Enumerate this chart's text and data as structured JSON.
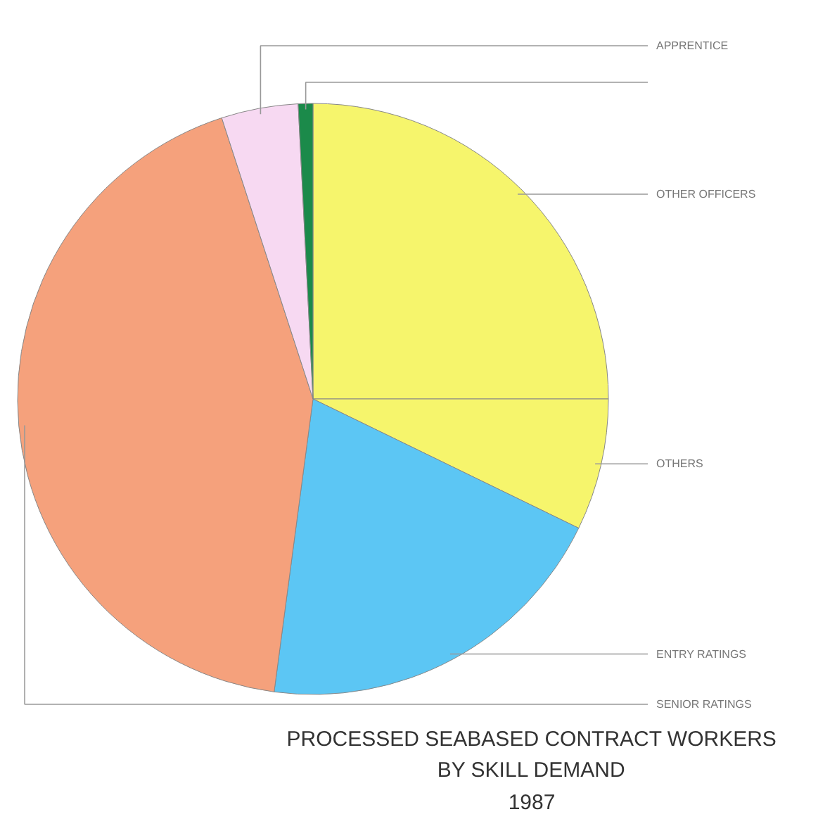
{
  "chart_data": {
    "type": "pie",
    "title": "PROCESSED SEABASED CONTRACT WORKERS\nBY SKILL DEMAND\n1987",
    "categories": [
      "OTHER OFFICERS",
      "OTHERS",
      "ENTRY RATINGS",
      "SENIOR RATINGS",
      "APPRENTICE",
      null
    ],
    "values": [
      25.0,
      7.2,
      19.9,
      42.9,
      4.2,
      0.8
    ],
    "colors": [
      "#f6f56c",
      "#f6f56c",
      "#5cc6f4",
      "#f5a17c",
      "#f7d9f2",
      "#1b8a4a"
    ]
  }
}
